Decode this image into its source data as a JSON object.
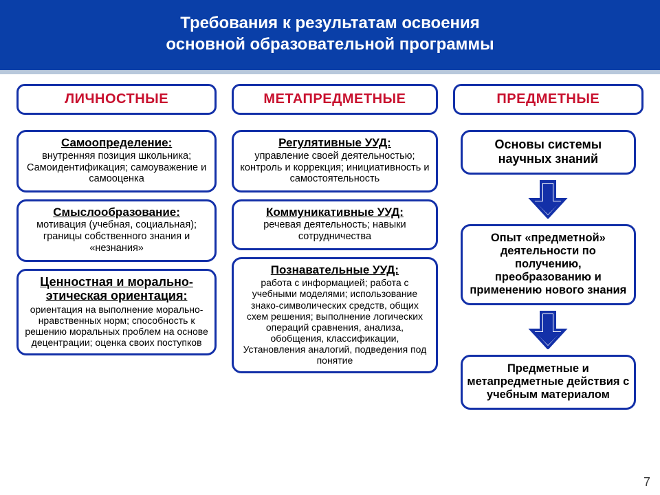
{
  "colors": {
    "header_bg": "#0a3fa8",
    "header_fg": "#ffffff",
    "border": "#1330a8",
    "category_fg": "#c8102e",
    "bg": "#ffffff",
    "arrow_fill": "#1330a8"
  },
  "header": {
    "line1": "Требования к результатам освоения",
    "line2": "основной образовательной  программы"
  },
  "categories": {
    "personal": "ЛИЧНОСТНЫЕ",
    "meta": "МЕТАПРЕДМЕТНЫЕ",
    "subject": "ПРЕДМЕТНЫЕ"
  },
  "col1": [
    {
      "title": "Самоопределение:",
      "body": "внутренняя позиция школьника; Самоидентификация; самоуважение и самооценка"
    },
    {
      "title": "Смыслообразование:",
      "body": "мотивация (учебная, социальная); границы собственного знания и «незнания»"
    },
    {
      "title": "Ценностная и морально-этическая ориентация:",
      "body": "ориентация на выполнение морально-нравственных норм; способность к решению моральных проблем на основе децентрации; оценка своих поступков"
    }
  ],
  "col2": [
    {
      "title": "Регулятивные УУД:",
      "body": "управление своей деятельностью; контроль и коррекция; инициативность и самостоятельность"
    },
    {
      "title": "Коммуникативные УУД:",
      "body": "речевая деятельность; навыки сотрудничества"
    },
    {
      "title": "Познавательные УУД:",
      "body": "работа с информацией; работа с учебными моделями; использование знако-символических средств, общих схем решения; выполнение логических операций сравнения,  анализа, обобщения, классификации, Установления аналогий, подведения под понятие"
    }
  ],
  "col3": [
    {
      "title": "Основы системы научных знаний"
    },
    {
      "title": "Опыт «предметной» деятельности по получению, преобразованию и применению нового знания"
    },
    {
      "title": "Предметные и метапредметные действия с учебным материалом"
    }
  ],
  "page_number": "7"
}
